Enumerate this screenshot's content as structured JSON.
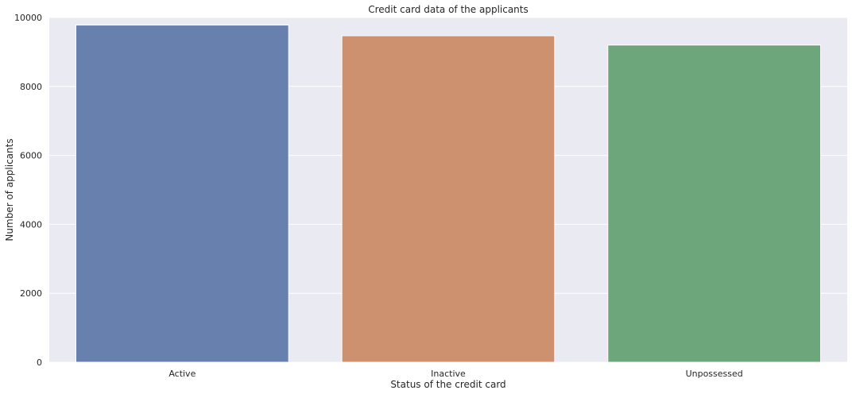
{
  "chart_data": {
    "type": "bar",
    "title": "Credit card data of the applicants",
    "xlabel": "Status of the credit card",
    "ylabel": "Number of applicants",
    "categories": [
      "Active",
      "Inactive",
      "Unpossessed"
    ],
    "values": [
      9780,
      9470,
      9200
    ],
    "colors": [
      "#6880ad",
      "#cd9170",
      "#6da67b"
    ],
    "ylim": [
      0,
      10000
    ],
    "yticks": [
      0,
      2000,
      4000,
      6000,
      8000,
      10000
    ],
    "ytick_labels": [
      "0",
      "2000",
      "4000",
      "6000",
      "8000",
      "10000"
    ],
    "grid": true,
    "plot_background": "#eaeaf2",
    "grid_color": "#ffffff",
    "legend": "none"
  }
}
